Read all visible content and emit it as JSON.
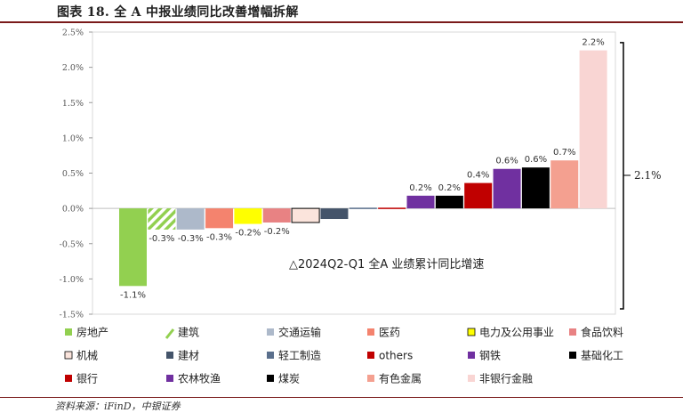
{
  "page": {
    "title": "图表 18.  全 A 中报业绩同比改善增幅拆解",
    "source": "资料来源：iFinD，中银证券"
  },
  "chart_data": {
    "type": "bar",
    "ylim": [
      -0.015,
      0.025
    ],
    "yticks": [
      -0.015,
      -0.01,
      -0.005,
      0.0,
      0.005,
      0.01,
      0.015,
      0.02,
      0.025
    ],
    "ytick_labels": [
      "-1.5%",
      "-1.0%",
      "-0.5%",
      "0.0%",
      "0.5%",
      "1.0%",
      "1.5%",
      "2.0%",
      "2.5%"
    ],
    "legend_position": "bottom",
    "annotation": "△2024Q2-Q1 全A 业绩累计同比增速",
    "bracket_label": "2.1%",
    "bracket_range": [
      0.0,
      0.0235
    ],
    "series": [
      {
        "name": "房地产",
        "value": -0.011,
        "label": "-1.1%",
        "color": "#92d050",
        "pattern": "solid"
      },
      {
        "name": "建筑",
        "value": -0.003,
        "label": "-0.3%",
        "color": "#92d050",
        "pattern": "hatch"
      },
      {
        "name": "交通运输",
        "value": -0.003,
        "label": "-0.3%",
        "color": "#adb9ca",
        "pattern": "solid"
      },
      {
        "name": "医药",
        "value": -0.0028,
        "label": "-0.3%",
        "color": "#f4836e",
        "pattern": "solid"
      },
      {
        "name": "电力及公用事业",
        "value": -0.0022,
        "label": "-0.2%",
        "color": "#ffff00",
        "pattern": "solid"
      },
      {
        "name": "食品饮料",
        "value": -0.002,
        "label": "-0.2%",
        "color": "#e88283",
        "pattern": "solid"
      },
      {
        "name": "机械",
        "value": -0.002,
        "label": "",
        "color": "#fbe4dc",
        "pattern": "solid"
      },
      {
        "name": "建材",
        "value": -0.0015,
        "label": "",
        "color": "#44546a",
        "pattern": "solid"
      },
      {
        "name": "轻工制造",
        "value": 0.0001,
        "label": "",
        "color": "#5a6f8c",
        "pattern": "solid"
      },
      {
        "name": "others",
        "value": 0.0001,
        "label": "",
        "color": "#c00000",
        "pattern": "solid"
      },
      {
        "name": "钢铁",
        "value": 0.0018,
        "label": "0.2%",
        "color": "#7030a0",
        "pattern": "solid"
      },
      {
        "name": "基础化工",
        "value": 0.0018,
        "label": "0.2%",
        "color": "#000000",
        "pattern": "solid"
      },
      {
        "name": "银行",
        "value": 0.0036,
        "label": "0.4%",
        "color": "#c00000",
        "pattern": "solid"
      },
      {
        "name": "农林牧渔",
        "value": 0.0056,
        "label": "0.6%",
        "color": "#7030a0",
        "pattern": "solid"
      },
      {
        "name": "煤炭",
        "value": 0.0058,
        "label": "0.6%",
        "color": "#000000",
        "pattern": "solid"
      },
      {
        "name": "有色金属",
        "value": 0.0068,
        "label": "0.7%",
        "color": "#f4a090",
        "pattern": "solid"
      },
      {
        "name": "非银行金融",
        "value": 0.0224,
        "label": "2.2%",
        "color": "#f9d5d3",
        "pattern": "solid"
      }
    ]
  }
}
